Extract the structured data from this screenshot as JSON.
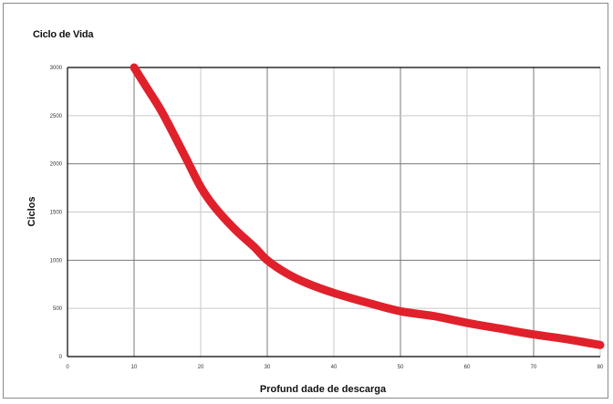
{
  "chart_data": {
    "type": "line",
    "title": "Ciclo de Vida",
    "xlabel": "Profund dade de descarga",
    "ylabel": "Ciclos",
    "x_ticks": [
      0,
      10,
      20,
      30,
      40,
      50,
      60,
      70,
      80
    ],
    "y_ticks": [
      0,
      500,
      1000,
      1500,
      2000,
      2500,
      3000
    ],
    "xlim": [
      0,
      80
    ],
    "ylim": [
      0,
      3000
    ],
    "grid": true,
    "colors": {
      "series": "#e0212b",
      "grid": "#c9c9c9",
      "axis": "#000000"
    },
    "series": [
      {
        "x": [
          10,
          12,
          14,
          16,
          18,
          20,
          22,
          25,
          28,
          30,
          33,
          36,
          40,
          45,
          50,
          55,
          60,
          65,
          70,
          75,
          80
        ],
        "values": [
          3000,
          2780,
          2560,
          2300,
          2030,
          1760,
          1560,
          1330,
          1140,
          1000,
          860,
          760,
          660,
          560,
          470,
          420,
          350,
          290,
          230,
          180,
          120
        ]
      }
    ]
  }
}
